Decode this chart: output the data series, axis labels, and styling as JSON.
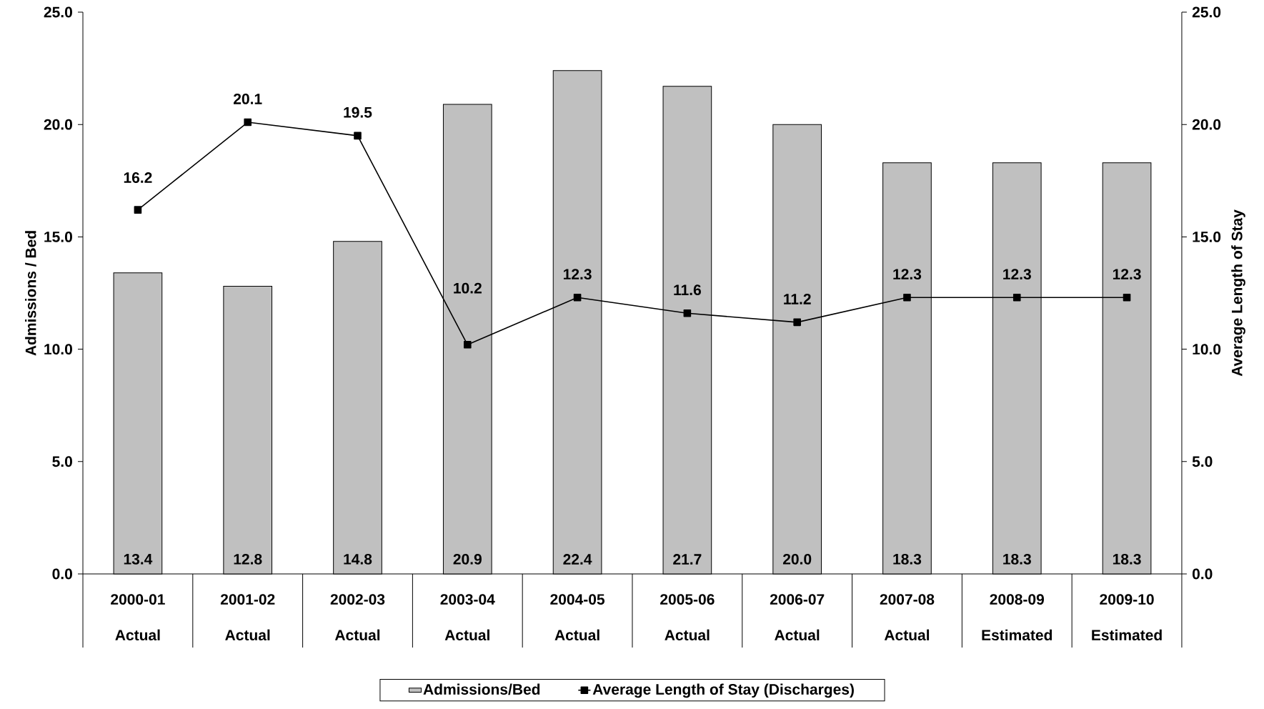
{
  "chart_data": {
    "type": "bar",
    "ylabel": "Admissions / Bed",
    "y2label": "Average Length of Stay",
    "categories": [
      "2000-01 Actual",
      "2001-02 Actual",
      "2002-03 Actual",
      "2003-04 Actual",
      "2004-05 Actual",
      "2005-06 Actual",
      "2006-07 Actual",
      "2007-08 Actual",
      "2008-09 Estimated",
      "2009-10 Estimated"
    ],
    "series": [
      {
        "name": "Admissions/Bed",
        "color": "#c0c0c0",
        "values": [
          13.4,
          12.8,
          14.8,
          20.9,
          22.4,
          21.7,
          20.0,
          18.3,
          18.3,
          18.3
        ],
        "value_labels": [
          "13.4",
          "12.8",
          "14.8",
          "20.9",
          "22.4",
          "21.7",
          "20.0",
          "18.3",
          "18.3",
          "18.3"
        ]
      },
      {
        "name": "Average Length of Stay (Discharges)",
        "type": "line",
        "axis": "y2",
        "color": "#000000",
        "values": [
          16.2,
          20.1,
          19.5,
          10.2,
          12.3,
          11.6,
          11.2,
          12.3,
          12.3,
          12.3
        ],
        "value_labels": [
          "16.2",
          "20.1",
          "19.5",
          "10.2",
          "12.3",
          "11.6",
          "11.2",
          "12.3",
          "12.3",
          "12.3"
        ]
      }
    ],
    "ylim": [
      0,
      25
    ],
    "yticks": [
      {
        "value": 0,
        "label": "0.0"
      },
      {
        "value": 5,
        "label": "5.0"
      },
      {
        "value": 10,
        "label": "10.0"
      },
      {
        "value": 15,
        "label": "15.0"
      },
      {
        "value": 20,
        "label": "20.0"
      },
      {
        "value": 25,
        "label": "25.0"
      }
    ],
    "y2lim": [
      0,
      25
    ],
    "y2ticks": [
      {
        "value": 0,
        "label": "0.0"
      },
      {
        "value": 5,
        "label": "5.0"
      },
      {
        "value": 10,
        "label": "10.0"
      },
      {
        "value": 15,
        "label": "15.0"
      },
      {
        "value": 20,
        "label": "20.0"
      },
      {
        "value": 25,
        "label": "25.0"
      }
    ],
    "legend": "bottom",
    "marker": "square"
  }
}
